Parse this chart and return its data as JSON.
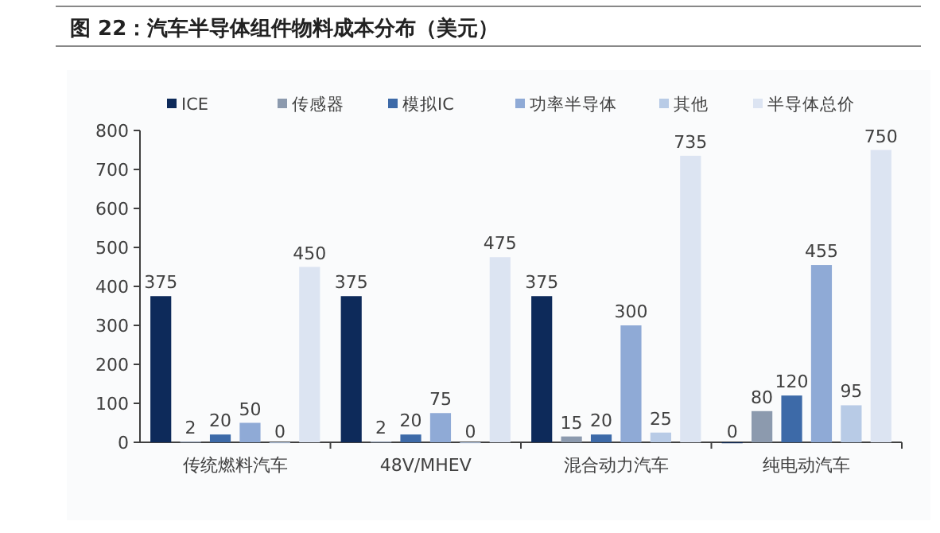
{
  "chart_data": {
    "type": "bar",
    "title": "图 22：汽车半导体组件物料成本分布（美元）",
    "categories": [
      "传统燃料汽车",
      "48V/MHEV",
      "混合动力汽车",
      "纯电动汽车"
    ],
    "series": [
      {
        "name": "ICE",
        "color": "#0d2a5a",
        "values": [
          375,
          375,
          375,
          0
        ]
      },
      {
        "name": "传感器",
        "color": "#8c9aae",
        "values": [
          2,
          2,
          15,
          80
        ]
      },
      {
        "name": "模拟IC",
        "color": "#3d6aa8",
        "values": [
          20,
          20,
          20,
          120
        ]
      },
      {
        "name": "功率半导体",
        "color": "#8faad6",
        "values": [
          50,
          75,
          300,
          455
        ]
      },
      {
        "name": "其他",
        "color": "#b8cbe6",
        "values": [
          0,
          0,
          25,
          95
        ]
      },
      {
        "name": "半导体总价",
        "color": "#dce4f2",
        "values": [
          450,
          475,
          735,
          750
        ]
      }
    ],
    "ylim": [
      0,
      800
    ],
    "yticks": [
      0,
      100,
      200,
      300,
      400,
      500,
      600,
      700,
      800
    ],
    "data_labels": true,
    "legend": "top",
    "grid": false
  }
}
